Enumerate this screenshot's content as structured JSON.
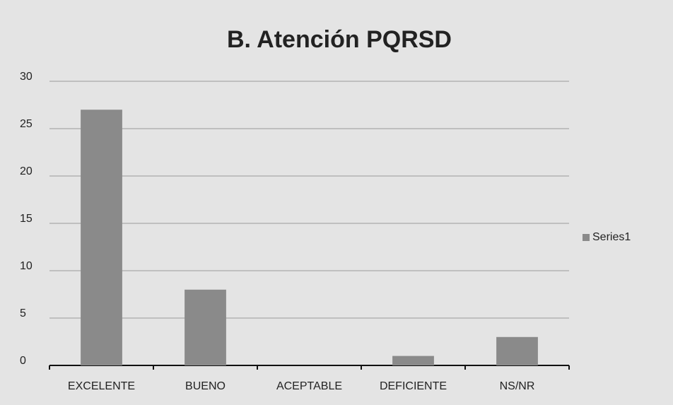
{
  "chart_data": {
    "type": "bar",
    "title": "B. Atención PQRSD",
    "categories": [
      "EXCELENTE",
      "BUENO",
      "ACEPTABLE",
      "DEFICIENTE",
      "NS/NR"
    ],
    "series": [
      {
        "name": "Series1",
        "color": "#8a8a8a",
        "values": [
          27,
          8,
          0,
          1,
          3
        ]
      }
    ],
    "ylim": [
      0,
      30
    ],
    "yticks": [
      0,
      5,
      10,
      15,
      20,
      25,
      30
    ],
    "grid": true,
    "legend": "right"
  }
}
